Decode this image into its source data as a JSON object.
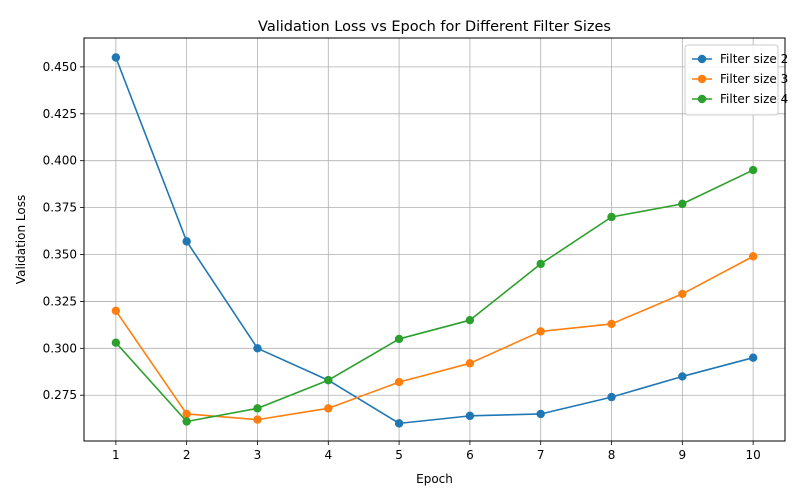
{
  "chart_data": {
    "type": "line",
    "title": "Validation Loss vs Epoch for Different Filter Sizes",
    "xlabel": "Epoch",
    "ylabel": "Validation Loss",
    "x": [
      1,
      2,
      3,
      4,
      5,
      6,
      7,
      8,
      9,
      10
    ],
    "xlim": [
      0.55,
      10.45
    ],
    "ylim": [
      0.2506,
      0.4654
    ],
    "yticks": [
      0.275,
      0.3,
      0.325,
      0.35,
      0.375,
      0.4,
      0.425,
      0.45
    ],
    "ytick_labels": [
      "0.275",
      "0.300",
      "0.325",
      "0.350",
      "0.375",
      "0.400",
      "0.425",
      "0.450"
    ],
    "xtick_labels": [
      "1",
      "2",
      "3",
      "4",
      "5",
      "6",
      "7",
      "8",
      "9",
      "10"
    ],
    "grid": true,
    "legend_position": "top-right",
    "series": [
      {
        "name": "Filter size 2",
        "color": "#1f77b4",
        "values": [
          0.455,
          0.357,
          0.3,
          0.283,
          0.26,
          0.264,
          0.265,
          0.274,
          0.285,
          0.295
        ]
      },
      {
        "name": "Filter size 3",
        "color": "#ff7f0e",
        "values": [
          0.32,
          0.265,
          0.262,
          0.268,
          0.282,
          0.292,
          0.309,
          0.313,
          0.329,
          0.349
        ]
      },
      {
        "name": "Filter size 4",
        "color": "#2ca02c",
        "values": [
          0.303,
          0.261,
          0.268,
          0.283,
          0.305,
          0.315,
          0.345,
          0.37,
          0.377,
          0.395
        ]
      }
    ]
  }
}
